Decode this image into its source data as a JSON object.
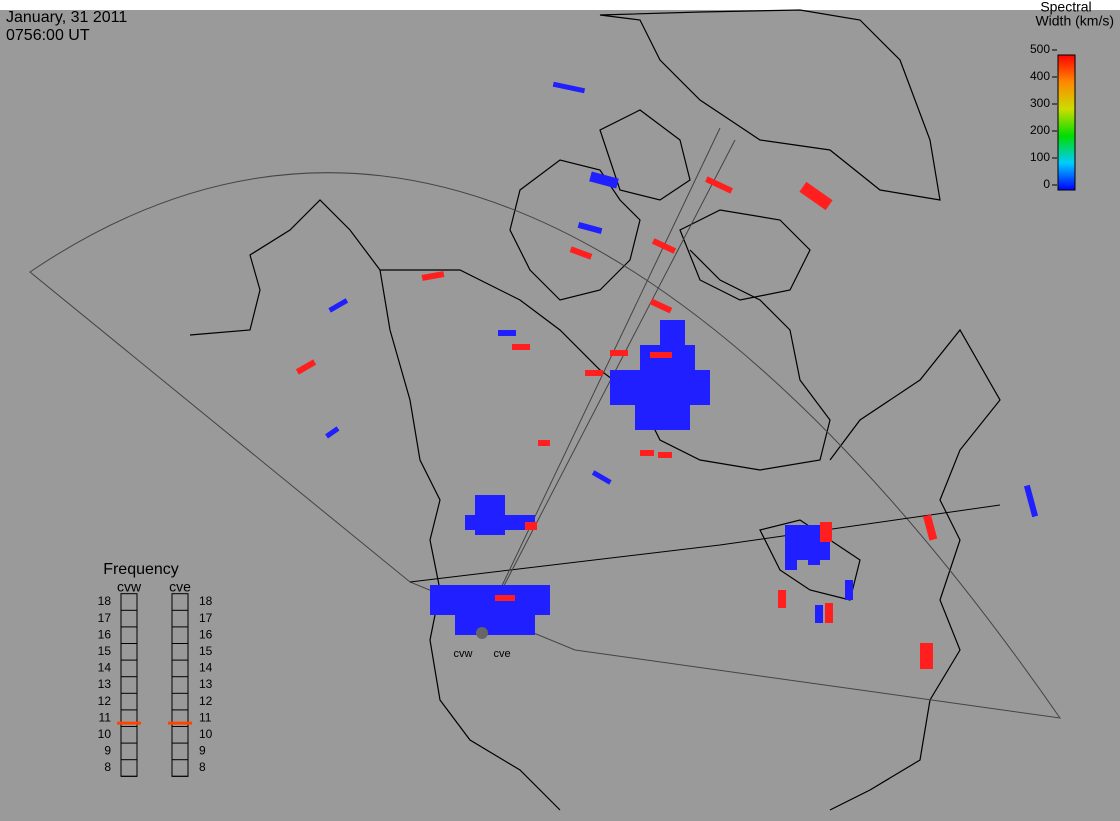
{
  "header": {
    "date": "January, 31 2011",
    "time": "0756:00 UT"
  },
  "colorbar": {
    "title": [
      "Spectral",
      "Width (km/s)"
    ],
    "range": [
      0,
      500
    ],
    "ticks": [
      0,
      100,
      200,
      300,
      400,
      500
    ]
  },
  "frequency": {
    "title": "Frequency",
    "range": [
      8,
      18
    ],
    "ticks": [
      8,
      9,
      10,
      11,
      12,
      13,
      14,
      15,
      16,
      17,
      18
    ],
    "radars": [
      {
        "name": "cvw",
        "value": 10.7
      },
      {
        "name": "cve",
        "value": 10.7
      }
    ]
  },
  "sites": [
    "cvw",
    "cve"
  ]
}
